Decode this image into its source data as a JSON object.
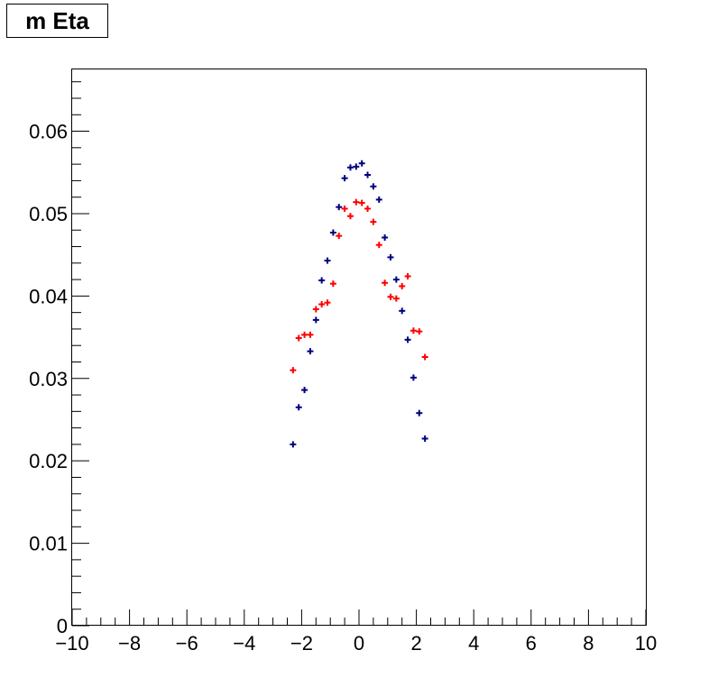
{
  "chart_data": {
    "type": "scatter",
    "title": "m Eta",
    "xlabel": "",
    "ylabel": "",
    "xlim": [
      -10,
      10
    ],
    "ylim": [
      0,
      0.0675
    ],
    "x_ticks": [
      -10,
      -8,
      -6,
      -4,
      -2,
      0,
      2,
      4,
      6,
      8,
      10
    ],
    "x_tick_labels": [
      "−10",
      "−8",
      "−6",
      "−4",
      "−2",
      "0",
      "2",
      "4",
      "6",
      "8",
      "10"
    ],
    "y_ticks": [
      0,
      0.01,
      0.02,
      0.03,
      0.04,
      0.05,
      0.06
    ],
    "y_tick_labels": [
      "0",
      "0.01",
      "0.02",
      "0.03",
      "0.04",
      "0.05",
      "0.06"
    ],
    "grid": false,
    "series": [
      {
        "color": "#000080",
        "x": [
          -2.3,
          -2.1,
          -1.9,
          -1.7,
          -1.5,
          -1.3,
          -1.1,
          -0.9,
          -0.7,
          -0.5,
          -0.3,
          -0.1,
          0.1,
          0.3,
          0.5,
          0.7,
          0.9,
          1.1,
          1.3,
          1.5,
          1.7,
          1.9,
          2.1,
          2.3
        ],
        "y": [
          0.022,
          0.0265,
          0.0286,
          0.0333,
          0.0371,
          0.0419,
          0.0443,
          0.0477,
          0.0508,
          0.0543,
          0.0556,
          0.0557,
          0.0561,
          0.0547,
          0.0533,
          0.0517,
          0.0471,
          0.0447,
          0.042,
          0.0382,
          0.0347,
          0.0301,
          0.0258,
          0.0227
        ]
      },
      {
        "color": "#ff0000",
        "x": [
          -2.3,
          -2.1,
          -1.9,
          -1.7,
          -1.5,
          -1.3,
          -1.1,
          -0.9,
          -0.7,
          -0.5,
          -0.3,
          -0.1,
          0.1,
          0.3,
          0.5,
          0.7,
          0.9,
          1.1,
          1.3,
          1.5,
          1.7,
          1.9,
          2.1,
          2.3
        ],
        "y": [
          0.031,
          0.0349,
          0.0353,
          0.0353,
          0.0384,
          0.039,
          0.0392,
          0.0415,
          0.0473,
          0.0506,
          0.0497,
          0.0514,
          0.0513,
          0.0506,
          0.049,
          0.0462,
          0.0416,
          0.0399,
          0.0397,
          0.0412,
          0.0424,
          0.0358,
          0.0357,
          0.0326
        ]
      }
    ]
  }
}
